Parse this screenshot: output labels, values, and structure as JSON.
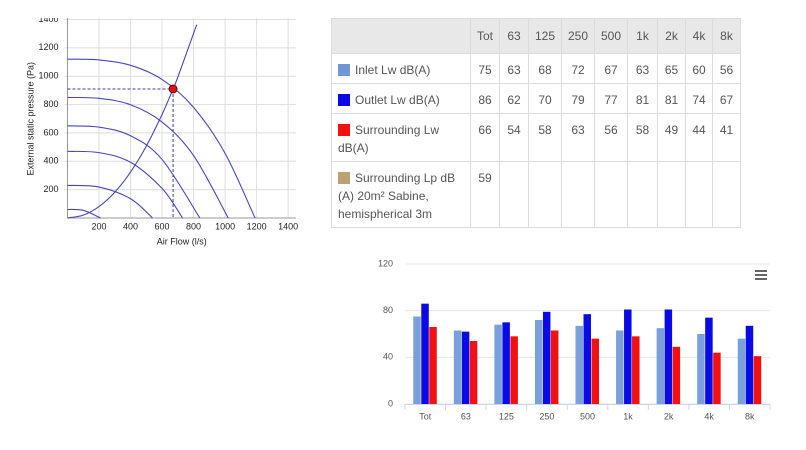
{
  "chart_data": [
    {
      "type": "line",
      "x_label": "Air Flow (l/s)",
      "y_label": "External static pressure (Pa)",
      "xlim": [
        0,
        1450
      ],
      "ylim": [
        0,
        1400
      ],
      "xticks": [
        200,
        400,
        600,
        800,
        1000,
        1200,
        1400
      ],
      "yticks": [
        200,
        400,
        600,
        800,
        1000,
        1200,
        1400
      ],
      "grid": true,
      "series": [
        {
          "color": "#4646c4",
          "x": [
            0,
            200,
            400,
            600,
            800,
            1000,
            1190
          ],
          "values": [
            1120,
            1115,
            1077,
            977,
            780,
            456,
            0
          ]
        },
        {
          "color": "#4646c4",
          "x": [
            0,
            200,
            400,
            600,
            800,
            1020
          ],
          "values": [
            850,
            844,
            799,
            677,
            440,
            0
          ]
        },
        {
          "color": "#4646c4",
          "x": [
            0,
            200,
            400,
            600,
            840
          ],
          "values": [
            650,
            641,
            580,
            413,
            0
          ]
        },
        {
          "color": "#4646c4",
          "x": [
            0,
            200,
            400,
            600,
            730
          ],
          "values": [
            470,
            461,
            393,
            209,
            0
          ]
        },
        {
          "color": "#4646c4",
          "x": [
            0,
            200,
            400,
            540
          ],
          "values": [
            230,
            218,
            136,
            0
          ]
        },
        {
          "color": "#4646c4",
          "x": [
            0,
            100,
            210
          ],
          "values": [
            60,
            54,
            0
          ]
        },
        {
          "color": "#4646c4",
          "x": [
            0,
            100,
            200,
            300,
            400,
            500,
            600,
            670,
            700,
            820
          ],
          "values": [
            0,
            20,
            81,
            182,
            324,
            507,
            730,
            910,
            993,
            1363
          ]
        }
      ],
      "operating_point": {
        "x": 670,
        "y": 910,
        "color": "#e01010"
      }
    },
    {
      "type": "bar",
      "categories": [
        "Tot",
        "63",
        "125",
        "250",
        "500",
        "1k",
        "2k",
        "4k",
        "8k"
      ],
      "ylim": [
        0,
        120
      ],
      "yticks": [
        0,
        40,
        80,
        120
      ],
      "grid": true,
      "series": [
        {
          "color": "#7aa0dc",
          "values": [
            75,
            63,
            68,
            72,
            67,
            63,
            65,
            60,
            56
          ]
        },
        {
          "color": "#0a0ae6",
          "values": [
            86,
            62,
            70,
            79,
            77,
            81,
            81,
            74,
            67
          ]
        },
        {
          "color": "#f21010",
          "values": [
            66,
            54,
            58,
            63,
            56,
            58,
            49,
            44,
            41
          ]
        }
      ]
    }
  ],
  "table": {
    "header": [
      "Tot",
      "63",
      "125",
      "250",
      "500",
      "1k",
      "2k",
      "4k",
      "8k"
    ],
    "rows": [
      {
        "color": "#6f97d5",
        "label": "Inlet Lw dB(A)",
        "values": [
          "75",
          "63",
          "68",
          "72",
          "67",
          "63",
          "65",
          "60",
          "56"
        ]
      },
      {
        "color": "#0a0ae6",
        "label": "Outlet Lw dB(A)",
        "values": [
          "86",
          "62",
          "70",
          "79",
          "77",
          "81",
          "81",
          "74",
          "67"
        ]
      },
      {
        "color": "#f21010",
        "label": "Surrounding Lw dB(A)",
        "values": [
          "66",
          "54",
          "58",
          "63",
          "56",
          "58",
          "49",
          "44",
          "41"
        ]
      },
      {
        "color": "#bca173",
        "label": "Surrounding Lp dB (A) 20m² Sabine, hemispherical 3m",
        "values": [
          "59"
        ]
      }
    ]
  }
}
